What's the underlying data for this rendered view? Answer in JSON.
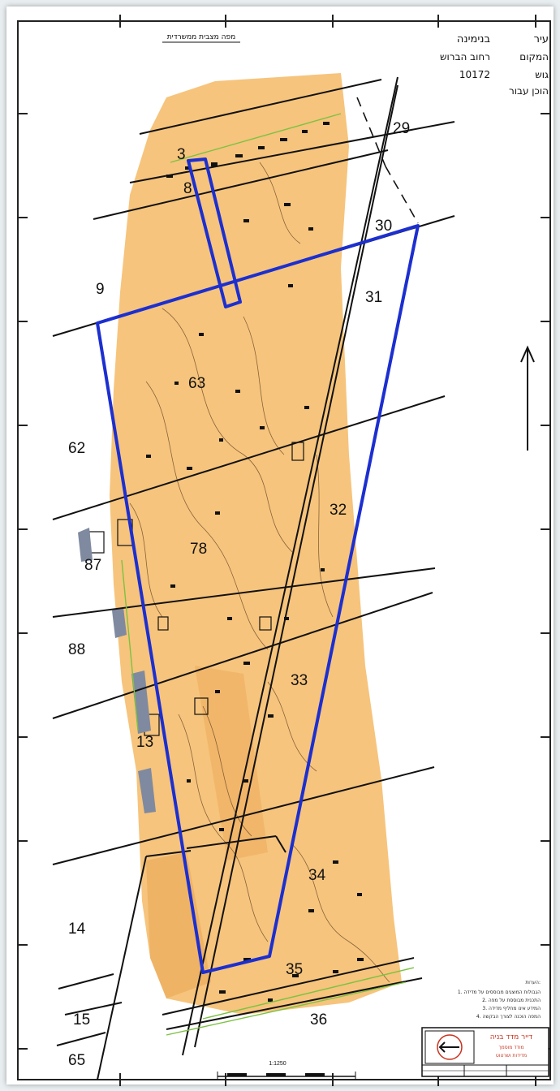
{
  "header": {
    "map_title": "מפה מצבית ממשרדית",
    "info_lines": [
      {
        "label": "עיר",
        "value": "בנימינה"
      },
      {
        "label": "המקום",
        "value": "רחוב הברוש"
      },
      {
        "label": "גוש",
        "value": "10172"
      },
      {
        "label": "הוכן עבור",
        "value": ""
      }
    ]
  },
  "parcels": {
    "p3": "3",
    "p8": "8",
    "p9": "9",
    "p13": "13",
    "p14": "14",
    "p15": "15",
    "p29": "29",
    "p30": "30",
    "p31": "31",
    "p32": "32",
    "p33": "33",
    "p34": "34",
    "p35": "35",
    "p36": "36",
    "p62": "62",
    "p63": "63",
    "p65": "65",
    "p78": "78",
    "p87": "87",
    "p88": "88"
  },
  "scale_bar": {
    "label": "1:1250"
  },
  "notes": {
    "heading": "הערות:",
    "lines": [
      "1. הגבולות המוצגים מבוססים על מדידה",
      "2. התכנית מבוססת על מפה",
      "3. המידע אינו מחליף מדידה",
      "4. המפה הוכנה לצורך הבקשה"
    ]
  },
  "title_block": {
    "surveyor_name": "דייר מדד בניה",
    "surveyor_role": "מודד מוסמך",
    "firm_line": "מדידות ושרטוט"
  },
  "colors": {
    "fill_area": "#f6c47c",
    "plan_boundary": "#1c2fd0",
    "line_black": "#111111",
    "stamp_red": "#c8321e"
  }
}
